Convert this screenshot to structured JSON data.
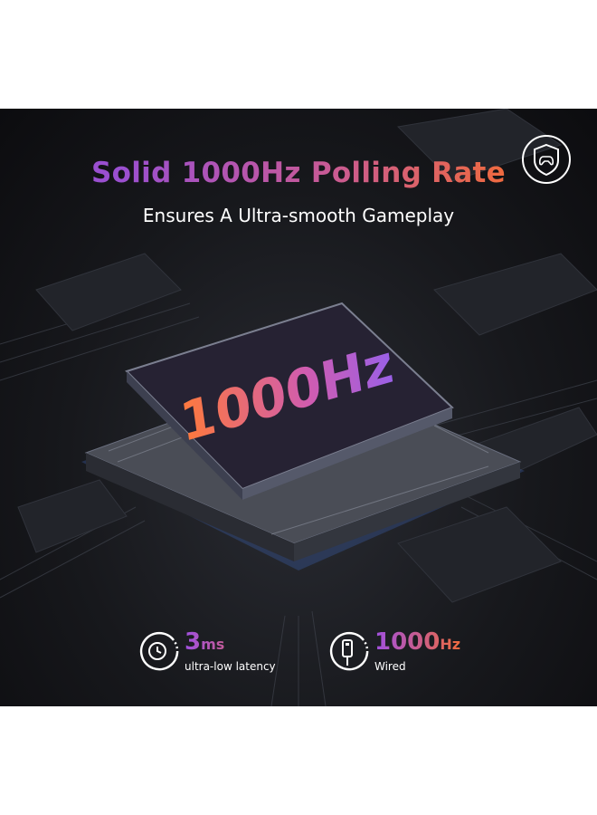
{
  "title": "Solid 1000Hz Polling Rate",
  "subtitle": "Ensures A Ultra-smooth Gameplay",
  "chip_label": "1000Hz",
  "badge_icon": "shield-gamepad-icon",
  "stats": [
    {
      "icon": "clock-icon",
      "value": "3",
      "unit": "ms",
      "label": "ultra-low latency"
    },
    {
      "icon": "usb-cable-icon",
      "value": "1000",
      "unit": "Hz",
      "label": "Wired"
    }
  ],
  "colors": {
    "gradient_start": "#9a4fd0",
    "gradient_end": "#ef6a3e",
    "background": "#17181c"
  }
}
